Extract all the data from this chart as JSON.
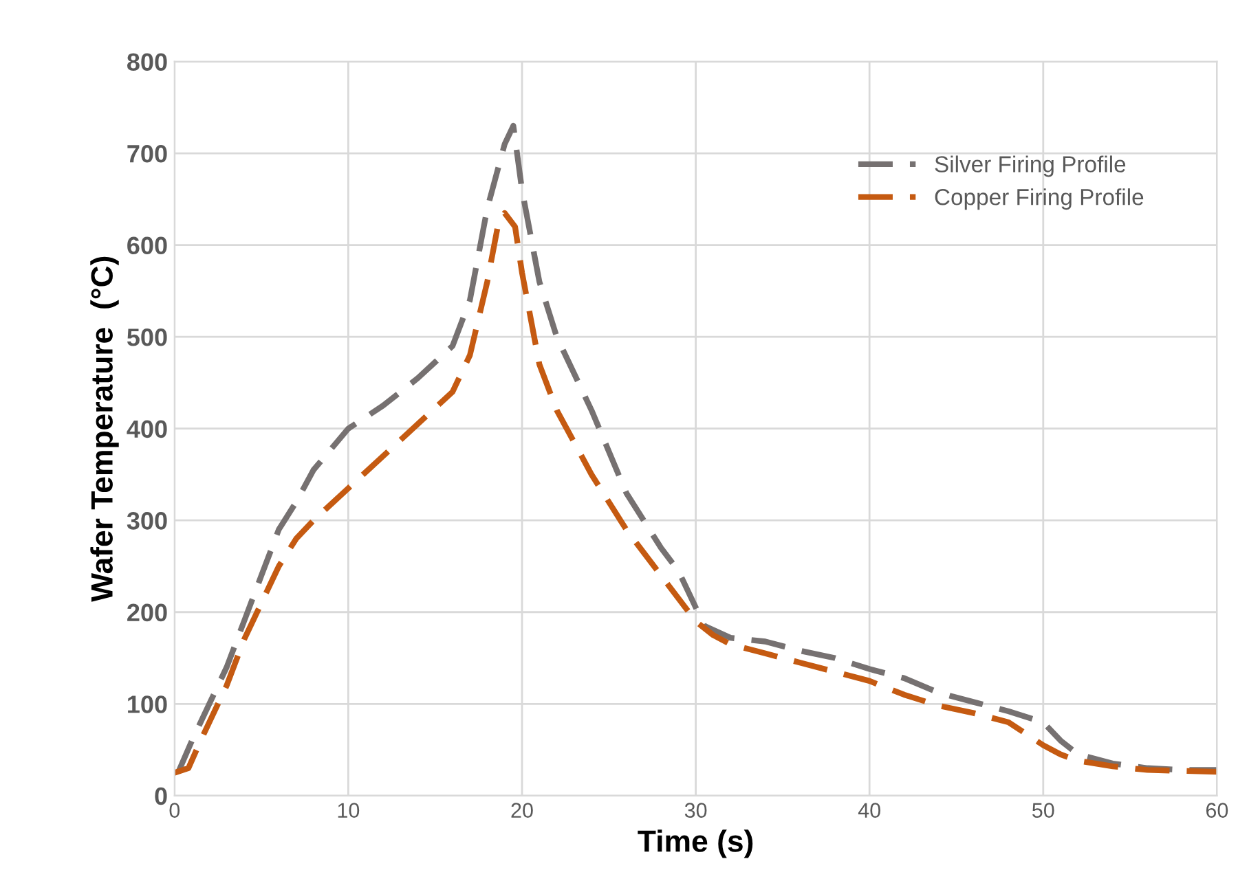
{
  "chart_data": {
    "type": "line",
    "xlabel": "Time (s)",
    "ylabel": "Wafer Temperature  (°C)",
    "xlim": [
      0,
      60
    ],
    "ylim": [
      0,
      800
    ],
    "xticks": [
      0,
      10,
      20,
      30,
      40,
      50,
      60
    ],
    "yticks": [
      0,
      100,
      200,
      300,
      400,
      500,
      600,
      700,
      800
    ],
    "grid": true,
    "legend": "top right",
    "line_style": "dashed",
    "marker": "none",
    "series": [
      {
        "name": "Silver Firing Profile",
        "color": "#767171",
        "x": [
          0.2,
          1,
          2,
          3,
          4,
          5,
          6,
          7,
          8,
          10,
          12,
          14,
          16,
          17,
          18,
          19,
          19.5,
          20,
          21,
          22,
          24,
          26,
          28,
          29,
          30,
          30.5,
          32,
          34,
          36,
          38,
          40,
          42,
          44,
          46,
          48,
          50,
          51,
          52,
          54,
          56,
          58,
          60
        ],
        "values": [
          25,
          60,
          100,
          140,
          190,
          240,
          290,
          320,
          355,
          400,
          425,
          455,
          490,
          540,
          640,
          710,
          730,
          660,
          560,
          500,
          420,
          330,
          270,
          245,
          205,
          185,
          172,
          168,
          158,
          150,
          138,
          128,
          112,
          102,
          92,
          80,
          60,
          45,
          35,
          30,
          28,
          28
        ]
      },
      {
        "name": "Copper Firing Profile",
        "color": "#c55a11",
        "x": [
          0,
          0.8,
          1.5,
          2,
          3,
          4,
          5,
          6,
          7,
          8,
          10,
          12,
          14,
          16,
          17,
          18,
          18.6,
          19,
          19.6,
          20,
          21,
          22,
          24,
          26,
          28,
          30,
          31,
          32,
          34,
          36,
          38,
          40,
          42,
          44,
          46,
          48,
          50,
          51,
          52,
          54,
          56,
          58,
          60
        ],
        "values": [
          25,
          30,
          60,
          80,
          120,
          170,
          210,
          250,
          280,
          300,
          335,
          370,
          405,
          440,
          480,
          560,
          620,
          635,
          620,
          570,
          470,
          420,
          350,
          290,
          240,
          190,
          175,
          165,
          155,
          145,
          135,
          125,
          110,
          98,
          90,
          80,
          55,
          45,
          38,
          32,
          28,
          27,
          26
        ]
      }
    ]
  }
}
